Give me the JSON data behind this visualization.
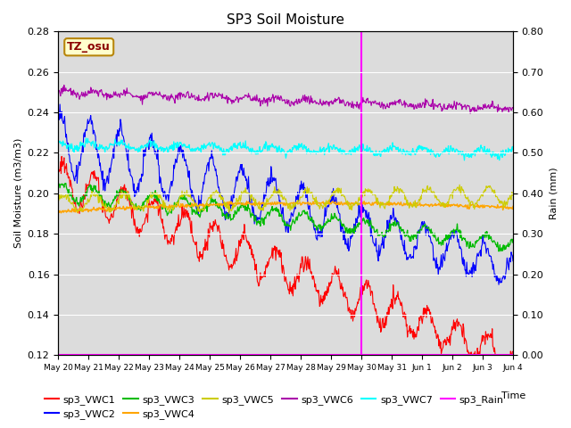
{
  "title": "SP3 Soil Moisture",
  "xlabel": "Time",
  "ylabel_left": "Soil Moisture (m3/m3)",
  "ylabel_right": "Rain (mm)",
  "ylim_left": [
    0.12,
    0.28
  ],
  "ylim_right": [
    0.0,
    0.8
  ],
  "background_color": "#dcdcdc",
  "vline_color": "magenta",
  "tz_label": "TZ_osu",
  "tz_box_facecolor": "#ffffcc",
  "tz_box_edgecolor": "#b8860b",
  "tz_text_color": "#8b0000",
  "xtick_labels": [
    "May 20",
    "May 21",
    "May 22",
    "May 23",
    "May 24",
    "May 25",
    "May 26",
    "May 27",
    "May 28",
    "May 29",
    "May 30",
    "May 31",
    "Jun 1",
    "Jun 2",
    "Jun 3",
    "Jun 4"
  ],
  "n_days": 16,
  "vline_day": 10
}
